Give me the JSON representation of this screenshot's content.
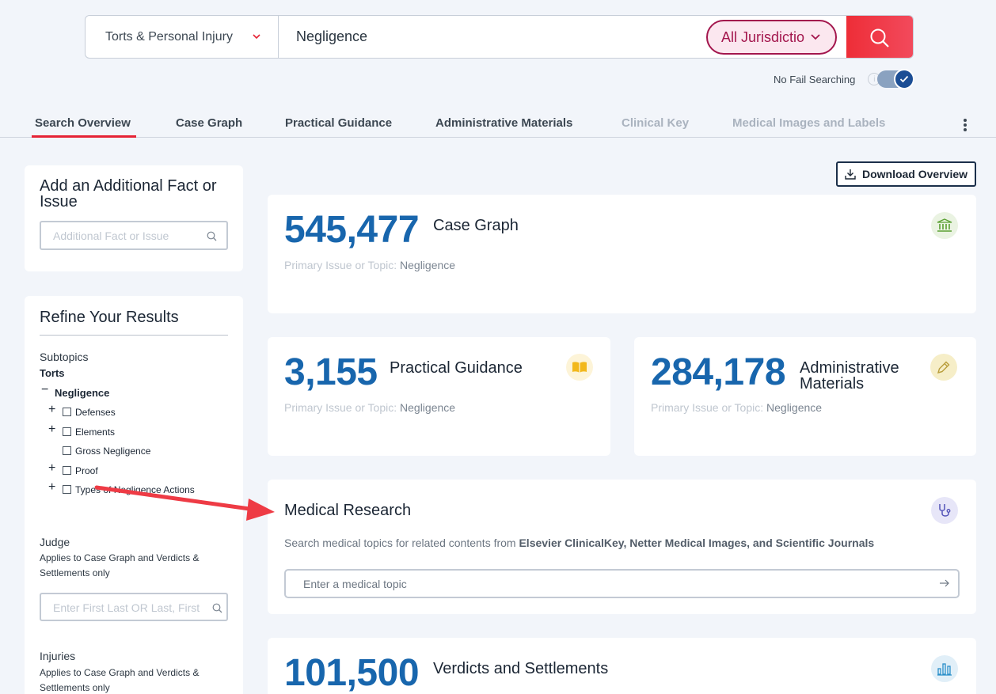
{
  "search": {
    "practice_area": "Torts & Personal Injury",
    "query": "Negligence",
    "jurisdiction": "All Jurisdictio",
    "no_fail_label": "No Fail Searching",
    "no_fail_info": "i",
    "no_fail_enabled": true
  },
  "tabs": [
    {
      "label": "Search Overview",
      "active": true,
      "disabled": false
    },
    {
      "label": "Case Graph",
      "active": false,
      "disabled": false
    },
    {
      "label": "Practical Guidance",
      "active": false,
      "disabled": false
    },
    {
      "label": "Administrative Materials",
      "active": false,
      "disabled": false
    },
    {
      "label": "Clinical Key",
      "active": false,
      "disabled": true
    },
    {
      "label": "Medical Images and Labels",
      "active": false,
      "disabled": true
    }
  ],
  "fact_panel": {
    "title": "Add an Additional Fact or Issue",
    "placeholder": "Additional Fact or Issue"
  },
  "refine": {
    "title": "Refine Your Results",
    "subtopics_label": "Subtopics",
    "torts_label": "Torts",
    "negligence_label": "Negligence",
    "items": [
      "Defenses",
      "Elements",
      "Gross Negligence",
      "Proof",
      "Types of Negligence Actions"
    ],
    "judge_label": "Judge",
    "judge_note": "Applies to Case Graph and Verdicts & Settlements only",
    "judge_placeholder": "Enter First Last OR Last, First",
    "injuries_label": "Injuries",
    "injuries_note": "Applies to Case Graph and Verdicts & Settlements only"
  },
  "download_label": "Download Overview",
  "cards": {
    "case_graph": {
      "count": "545,477",
      "title": "Case Graph",
      "sub_label": "Primary Issue or Topic:",
      "sub_value": "Negligence",
      "icon": "courthouse-icon"
    },
    "practical": {
      "count": "3,155",
      "title": "Practical Guidance",
      "sub_label": "Primary Issue or Topic:",
      "sub_value": "Negligence",
      "icon": "book-icon"
    },
    "admin": {
      "count": "284,178",
      "title": "Administrative Materials",
      "sub_label": "Primary Issue or Topic:",
      "sub_value": "Negligence",
      "icon": "pen-icon"
    },
    "verdicts": {
      "count": "101,500",
      "title": "Verdicts and Settlements",
      "icon": "bar-chart-icon"
    }
  },
  "medical": {
    "title": "Medical Research",
    "sub_prefix": "Search medical topics for related contents from ",
    "sub_sources": "Elsevier ClinicalKey, Netter Medical Images, and Scientific Journals",
    "placeholder": "Enter a medical topic",
    "icon": "stethoscope-icon"
  },
  "colors": {
    "accent": "#e52335",
    "count_blue": "#1866ad",
    "jurisdiction": "#a3164d",
    "annotation_arrow": "#ee3b45"
  }
}
